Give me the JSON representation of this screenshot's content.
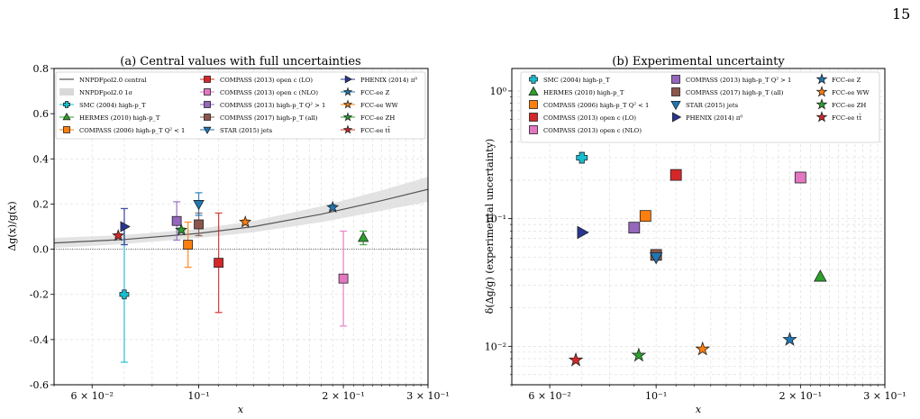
{
  "page_number": "15",
  "chart_data": [
    {
      "type": "scatter",
      "title": "(a) Central values with full uncertainties",
      "xlabel": "x",
      "ylabel": "Δg(x)/g(x)",
      "xscale": "log",
      "xlim": [
        0.05,
        0.3
      ],
      "ylim": [
        -0.6,
        0.8
      ],
      "x_ticks": [
        {
          "value": 0.06,
          "label": "6 × 10⁻²"
        },
        {
          "value": 0.1,
          "label": "10⁻¹"
        },
        {
          "value": 0.2,
          "label": "2 × 10⁻¹"
        },
        {
          "value": 0.3,
          "label": "3 × 10⁻¹"
        }
      ],
      "y_ticks": [
        -0.6,
        -0.4,
        -0.2,
        0.0,
        0.2,
        0.4,
        0.6,
        0.8
      ],
      "grid": true,
      "legend_position": "top",
      "band": {
        "name": "NNPDFpol2.0 central",
        "band_name": "NNPDFpol2.0 1σ",
        "x": [
          0.05,
          0.07,
          0.1,
          0.13,
          0.18,
          0.24,
          0.3
        ],
        "central": [
          0.028,
          0.043,
          0.07,
          0.1,
          0.155,
          0.215,
          0.265
        ],
        "upper": [
          0.05,
          0.063,
          0.09,
          0.125,
          0.19,
          0.26,
          0.32
        ],
        "lower": [
          0.006,
          0.023,
          0.05,
          0.075,
          0.12,
          0.17,
          0.21
        ]
      },
      "series": [
        {
          "name": "SMC (2004) high-p_T",
          "marker": "plus",
          "color": "#17becf",
          "x": 0.07,
          "y": -0.2,
          "err": [
            0.3,
            0.3
          ]
        },
        {
          "name": "HERMES (2010) high-p_T",
          "marker": "triangle-up",
          "color": "#2ca02c",
          "x": 0.22,
          "y": 0.05,
          "err": [
            0.03,
            0.03
          ]
        },
        {
          "name": "COMPASS (2006) high-p_T Q² < 1",
          "marker": "square",
          "color": "#ff7f0e",
          "x": 0.095,
          "y": 0.02,
          "err": [
            0.1,
            0.1
          ]
        },
        {
          "name": "COMPASS (2013) open c (LO)",
          "marker": "square",
          "color": "#d62728",
          "x": 0.11,
          "y": -0.06,
          "err": [
            0.22,
            0.22
          ]
        },
        {
          "name": "COMPASS (2013) open c (NLO)",
          "marker": "square",
          "color": "#e377c2",
          "x": 0.2,
          "y": -0.13,
          "err": [
            0.21,
            0.21
          ]
        },
        {
          "name": "COMPASS (2013) high-p_T Q² > 1",
          "marker": "square",
          "color": "#9467bd",
          "x": 0.09,
          "y": 0.125,
          "err": [
            0.085,
            0.085
          ]
        },
        {
          "name": "COMPASS (2017) high-p_T (all)",
          "marker": "square",
          "color": "#8c564b",
          "x": 0.1,
          "y": 0.11,
          "err": [
            0.05,
            0.05
          ]
        },
        {
          "name": "STAR (2015) jets",
          "marker": "triangle-down",
          "color": "#1f77b4",
          "x": 0.1,
          "y": 0.2,
          "err": [
            0.05,
            0.05
          ]
        },
        {
          "name": "PHENIX (2014) π⁰",
          "marker": "triangle-right",
          "color": "#283593",
          "x": 0.07,
          "y": 0.1,
          "err": [
            0.08,
            0.08
          ]
        },
        {
          "name": "FCC-ee Z",
          "marker": "star",
          "color": "#1f77b4",
          "x": 0.19,
          "y": 0.185,
          "err": [
            0.011,
            0.011
          ]
        },
        {
          "name": "FCC-ee WW",
          "marker": "star",
          "color": "#ff7f0e",
          "x": 0.125,
          "y": 0.12,
          "err": [
            0.01,
            0.01
          ]
        },
        {
          "name": "FCC-ee ZH",
          "marker": "star",
          "color": "#2ca02c",
          "x": 0.092,
          "y": 0.085,
          "err": [
            0.009,
            0.009
          ]
        },
        {
          "name": "FCC-ee tt̄",
          "marker": "star",
          "color": "#d62728",
          "x": 0.068,
          "y": 0.06,
          "err": [
            0.008,
            0.008
          ]
        }
      ]
    },
    {
      "type": "scatter",
      "title": "(b) Experimental uncertainty",
      "xlabel": "x",
      "ylabel": "δ(Δg/g) (experimental uncertainty)",
      "xscale": "log",
      "yscale": "log",
      "xlim": [
        0.05,
        0.3
      ],
      "ylim": [
        0.005,
        1.5
      ],
      "x_ticks": [
        {
          "value": 0.06,
          "label": "6 × 10⁻²"
        },
        {
          "value": 0.1,
          "label": "10⁻¹"
        },
        {
          "value": 0.2,
          "label": "2 × 10⁻¹"
        },
        {
          "value": 0.3,
          "label": "3 × 10⁻¹"
        }
      ],
      "y_ticks": [
        {
          "value": 0.01,
          "label": "10⁻²"
        },
        {
          "value": 0.1,
          "label": "10⁻¹"
        },
        {
          "value": 1,
          "label": "10⁰"
        }
      ],
      "grid": true,
      "legend_position": "top",
      "series": [
        {
          "name": "SMC (2004) high-p_T",
          "marker": "plus",
          "color": "#17becf",
          "x": 0.07,
          "y": 0.3
        },
        {
          "name": "HERMES (2010) high-p_T",
          "marker": "triangle-up",
          "color": "#2ca02c",
          "x": 0.22,
          "y": 0.035
        },
        {
          "name": "COMPASS (2006) high-p_T Q² < 1",
          "marker": "square",
          "color": "#ff7f0e",
          "x": 0.095,
          "y": 0.105
        },
        {
          "name": "COMPASS (2013) open c (LO)",
          "marker": "square",
          "color": "#d62728",
          "x": 0.11,
          "y": 0.22
        },
        {
          "name": "COMPASS (2013) open c (NLO)",
          "marker": "square",
          "color": "#e377c2",
          "x": 0.2,
          "y": 0.21
        },
        {
          "name": "COMPASS (2013) high-p_T Q² > 1",
          "marker": "square",
          "color": "#9467bd",
          "x": 0.09,
          "y": 0.085
        },
        {
          "name": "COMPASS (2017) high-p_T (all)",
          "marker": "square",
          "color": "#8c564b",
          "x": 0.1,
          "y": 0.052
        },
        {
          "name": "STAR (2015) jets",
          "marker": "triangle-down",
          "color": "#1f77b4",
          "x": 0.1,
          "y": 0.05
        },
        {
          "name": "PHENIX (2014) π⁰",
          "marker": "triangle-right",
          "color": "#283593",
          "x": 0.07,
          "y": 0.078
        },
        {
          "name": "FCC-ee Z",
          "marker": "star",
          "color": "#1f77b4",
          "x": 0.19,
          "y": 0.0113
        },
        {
          "name": "FCC-ee WW",
          "marker": "star",
          "color": "#ff7f0e",
          "x": 0.125,
          "y": 0.0095
        },
        {
          "name": "FCC-ee ZH",
          "marker": "star",
          "color": "#2ca02c",
          "x": 0.092,
          "y": 0.0085
        },
        {
          "name": "FCC-ee tt̄",
          "marker": "star",
          "color": "#d62728",
          "x": 0.068,
          "y": 0.0078
        }
      ]
    }
  ]
}
